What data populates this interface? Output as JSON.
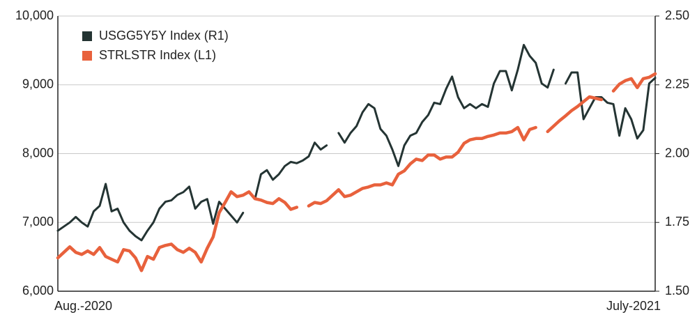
{
  "chart_data": {
    "type": "line",
    "categories": [
      "Aug.-2020",
      null,
      null,
      null,
      null,
      null,
      null,
      null,
      null,
      null,
      null,
      null,
      null,
      null,
      null,
      null,
      null,
      null,
      null,
      null,
      null,
      null,
      null,
      null,
      null,
      null,
      null,
      null,
      null,
      null,
      null,
      null,
      null,
      null,
      null,
      null,
      null,
      null,
      null,
      null,
      null,
      null,
      null,
      null,
      null,
      null,
      null,
      null,
      null,
      null,
      null,
      null,
      null,
      null,
      null,
      null,
      null,
      null,
      null,
      null,
      null,
      null,
      null,
      null,
      null,
      null,
      null,
      null,
      null,
      null,
      null,
      null,
      null,
      null,
      null,
      null,
      null,
      null,
      null,
      null,
      null,
      null,
      null,
      null,
      null,
      null,
      null,
      null,
      null,
      null,
      null,
      null,
      null,
      null,
      null,
      null,
      null,
      null,
      null,
      null,
      "July-2021"
    ],
    "series": [
      {
        "name": "USGG5Y5Y Index (R1)",
        "color": "#243433",
        "axis": "y2",
        "values": [
          1.72,
          1.735,
          1.75,
          1.77,
          1.75,
          1.735,
          1.79,
          1.81,
          1.89,
          1.79,
          1.8,
          1.75,
          1.72,
          1.7,
          1.685,
          1.72,
          1.75,
          1.8,
          1.825,
          1.83,
          1.85,
          1.86,
          1.88,
          1.8,
          1.825,
          1.835,
          1.745,
          1.825,
          1.8,
          1.775,
          1.75,
          1.785,
          null,
          1.835,
          1.925,
          1.94,
          1.905,
          1.925,
          1.955,
          1.97,
          1.965,
          1.975,
          1.99,
          2.04,
          2.015,
          2.03,
          null,
          2.075,
          2.04,
          2.075,
          2.1,
          2.15,
          2.18,
          2.165,
          2.09,
          2.065,
          2.015,
          1.955,
          2.03,
          2.065,
          2.075,
          2.115,
          2.14,
          2.185,
          2.18,
          2.235,
          2.28,
          2.205,
          2.165,
          2.18,
          2.165,
          2.18,
          2.17,
          2.255,
          2.3,
          2.3,
          2.23,
          2.305,
          2.395,
          2.355,
          2.33,
          2.255,
          2.24,
          2.305,
          null,
          2.255,
          2.295,
          2.295,
          2.125,
          2.165,
          2.205,
          2.205,
          2.185,
          2.18,
          2.065,
          2.165,
          2.125,
          2.055,
          2.085,
          2.255,
          2.275
        ]
      },
      {
        "name": "STRLSTR Index (L1)",
        "color": "#e8613c",
        "values": [
          6485,
          6565,
          6645,
          6565,
          6535,
          6585,
          6535,
          6635,
          6505,
          6465,
          6425,
          6605,
          6585,
          6485,
          6300,
          6505,
          6465,
          6635,
          6665,
          6685,
          6605,
          6565,
          6625,
          6565,
          6425,
          6625,
          6790,
          7140,
          7290,
          7445,
          7375,
          7395,
          7445,
          7345,
          7325,
          7290,
          7275,
          7345,
          7290,
          7190,
          7220,
          null,
          7240,
          7290,
          7275,
          7315,
          7395,
          7475,
          7375,
          7395,
          7445,
          7495,
          7515,
          7545,
          7545,
          7575,
          7545,
          7700,
          7750,
          7850,
          7920,
          7900,
          7980,
          7980,
          7920,
          7950,
          7950,
          8020,
          8150,
          8200,
          8220,
          8220,
          8250,
          8270,
          8300,
          8300,
          8320,
          8380,
          8200,
          8350,
          8380,
          null,
          8320,
          8400,
          8480,
          8550,
          8625,
          8685,
          8755,
          8825,
          8805,
          8785,
          null,
          8910,
          9010,
          9060,
          9090,
          8960,
          9090,
          9110,
          9160
        ]
      }
    ],
    "ylim": [
      6000,
      10000
    ],
    "yticks": [
      {
        "value": 6000,
        "label": "6,000"
      },
      {
        "value": 7000,
        "label": "7,000"
      },
      {
        "value": 8000,
        "label": "8,000"
      },
      {
        "value": 9000,
        "label": "9,000"
      },
      {
        "value": 10000,
        "label": "10,000"
      }
    ],
    "y2lim": [
      1.5,
      2.5
    ],
    "y2ticks": [
      {
        "value": 1.5,
        "label": "1.50"
      },
      1.75,
      {
        "value": 2,
        "label": "2.00"
      },
      2.25,
      {
        "value": 2.5,
        "label": "2.50"
      }
    ],
    "grid": true,
    "legend": "top-left"
  }
}
